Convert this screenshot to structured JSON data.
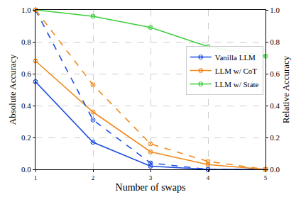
{
  "chart_data": {
    "type": "line",
    "x": [
      1,
      2,
      3,
      4,
      5
    ],
    "x_label": "Number of swaps",
    "y_label": "Absolute Accuracy",
    "y2_label": "Relative Accuracy",
    "xlim": [
      1,
      5
    ],
    "xticks": [
      1,
      2,
      3,
      4,
      5
    ],
    "ylim": [
      0,
      1
    ],
    "yticks": [
      {
        "value": 0,
        "label": "0.0"
      },
      {
        "value": 0.2,
        "label": "0.2"
      },
      {
        "value": 0.4,
        "label": "0.4"
      },
      {
        "value": 0.6,
        "label": "0.6"
      },
      {
        "value": 0.8,
        "label": "0.8"
      },
      {
        "value": 1,
        "label": "1.0"
      }
    ],
    "y2lim": [
      0,
      1
    ],
    "y2ticks": [
      {
        "value": 0,
        "label": "0.0"
      },
      {
        "value": 0.2,
        "label": "0.2"
      },
      {
        "value": 0.4,
        "label": "0.4"
      },
      {
        "value": 0.6,
        "label": "0.6"
      },
      {
        "value": 0.8,
        "label": "0.8"
      },
      {
        "value": 1,
        "label": "1.0"
      }
    ],
    "grid": true,
    "legend": "right",
    "marker": "circle-x",
    "series": [
      {
        "name": "Vanilla LLM",
        "color": "#1f4fe0",
        "line_style": "solid",
        "values": [
          0.55,
          0.17,
          0.02,
          0.0,
          0.0
        ]
      },
      {
        "name": "LLM w/ CoT",
        "color": "#f08a1c",
        "line_style": "solid",
        "values": [
          0.68,
          0.36,
          0.11,
          0.03,
          0.0
        ]
      },
      {
        "name": "LLM w/ State",
        "color": "#3ccf3c",
        "line_style": "solid",
        "values": [
          1.0,
          0.96,
          0.89,
          0.77,
          0.71
        ]
      },
      {
        "color": "#1f4fe0",
        "line_style": "dashed",
        "axis": "y2",
        "values": [
          1.0,
          0.31,
          0.04,
          0.0,
          0.0
        ]
      },
      {
        "color": "#f08a1c",
        "line_style": "dashed",
        "axis": "y2",
        "values": [
          1.0,
          0.53,
          0.16,
          0.05,
          0.0
        ]
      }
    ]
  }
}
